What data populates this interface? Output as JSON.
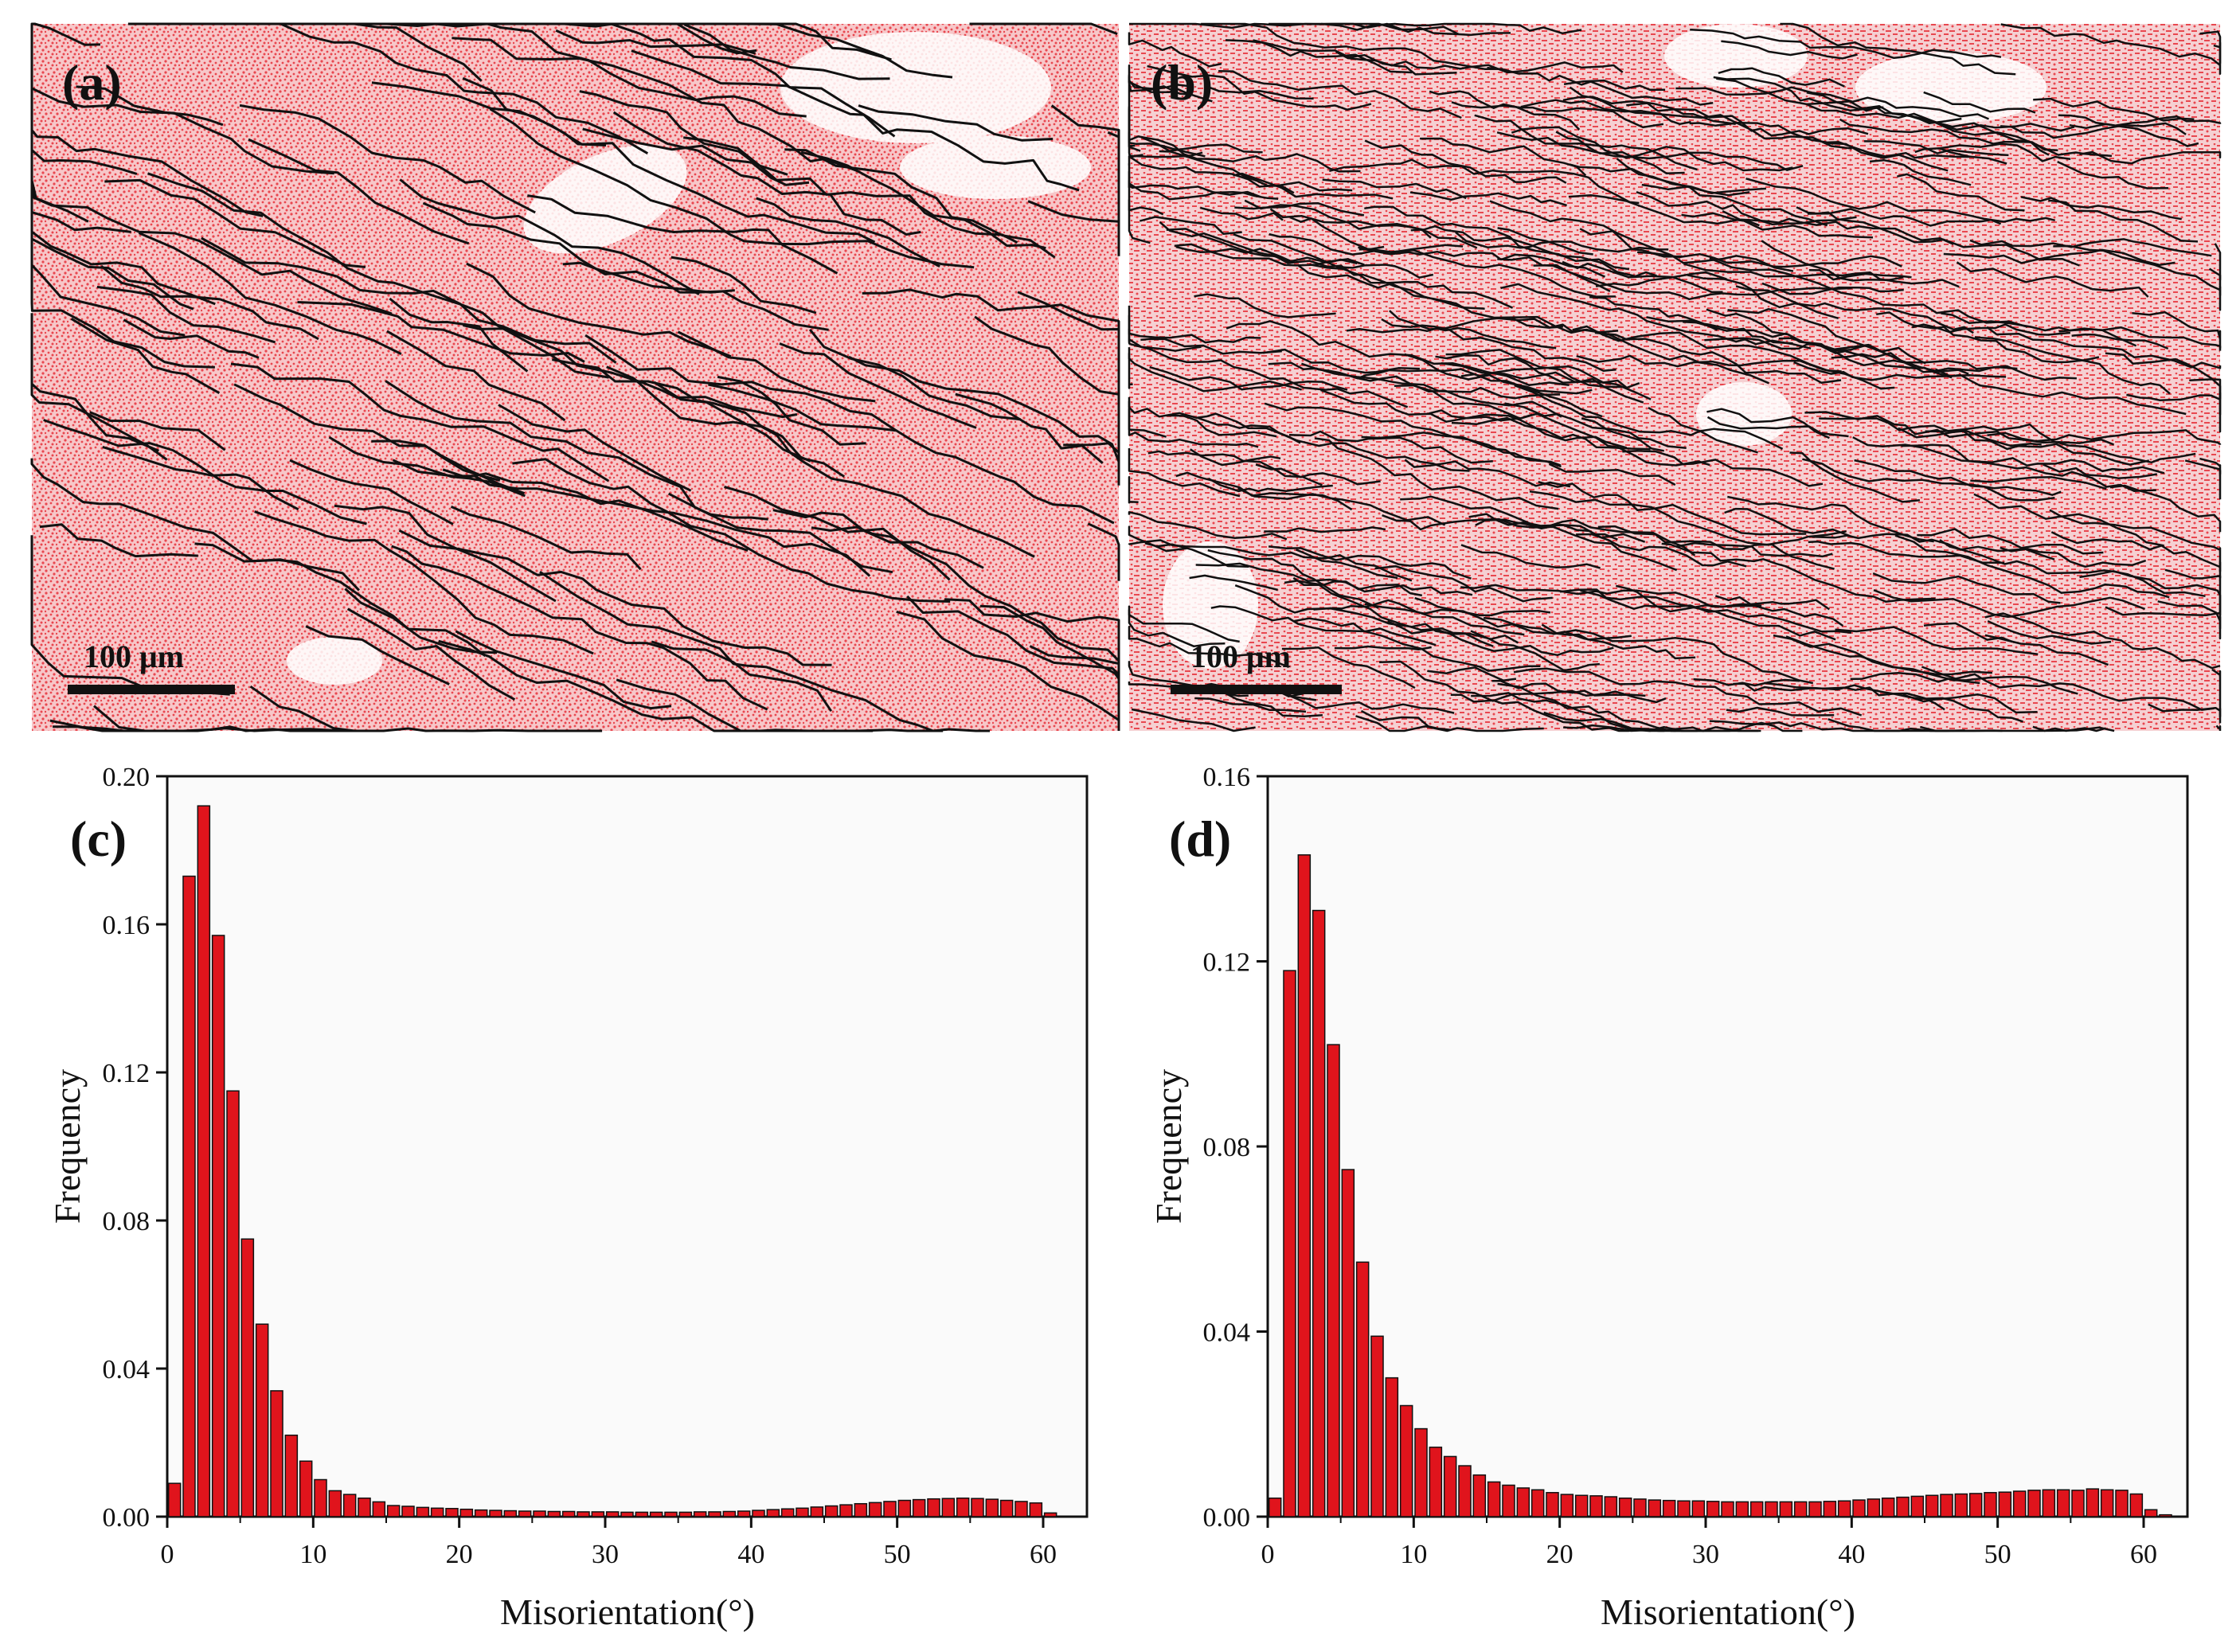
{
  "maps": [
    {
      "label": "(a)",
      "scalebar": "100 μm",
      "colors": {
        "grain": "#e8474f",
        "boundary": "#111111",
        "background": "#ffffff"
      }
    },
    {
      "label": "(b)",
      "scalebar": "100 μm",
      "colors": {
        "grain": "#e8474f",
        "boundary": "#111111",
        "background": "#ffffff"
      }
    }
  ],
  "chart_data": [
    {
      "type": "bar",
      "panel": "(c)",
      "xlabel": "Misorientation(°)",
      "ylabel": "Frequency",
      "xlim": [
        0,
        63
      ],
      "ylim": [
        0,
        0.2
      ],
      "xticks": [
        0,
        10,
        20,
        30,
        40,
        50,
        60
      ],
      "yticks": [
        0.0,
        0.04,
        0.08,
        0.12,
        0.16,
        0.2
      ],
      "ytick_labels": [
        "0.00",
        "0.04",
        "0.08",
        "0.12",
        "0.16",
        "0.20"
      ],
      "bar_color": "#e0141c",
      "x": [
        0.5,
        1.5,
        2.5,
        3.5,
        4.5,
        5.5,
        6.5,
        7.5,
        8.5,
        9.5,
        10.5,
        11.5,
        12.5,
        13.5,
        14.5,
        15.5,
        16.5,
        17.5,
        18.5,
        19.5,
        20.5,
        21.5,
        22.5,
        23.5,
        24.5,
        25.5,
        26.5,
        27.5,
        28.5,
        29.5,
        30.5,
        31.5,
        32.5,
        33.5,
        34.5,
        35.5,
        36.5,
        37.5,
        38.5,
        39.5,
        40.5,
        41.5,
        42.5,
        43.5,
        44.5,
        45.5,
        46.5,
        47.5,
        48.5,
        49.5,
        50.5,
        51.5,
        52.5,
        53.5,
        54.5,
        55.5,
        56.5,
        57.5,
        58.5,
        59.5,
        60.5
      ],
      "values": [
        0.009,
        0.173,
        0.192,
        0.157,
        0.115,
        0.075,
        0.052,
        0.034,
        0.022,
        0.015,
        0.01,
        0.007,
        0.006,
        0.005,
        0.004,
        0.003,
        0.0028,
        0.0025,
        0.0023,
        0.0022,
        0.002,
        0.0018,
        0.0017,
        0.0016,
        0.0015,
        0.0015,
        0.0014,
        0.0014,
        0.0013,
        0.0013,
        0.0013,
        0.0012,
        0.0012,
        0.0012,
        0.0012,
        0.0012,
        0.0013,
        0.0013,
        0.0014,
        0.0015,
        0.0017,
        0.0019,
        0.0021,
        0.0023,
        0.0026,
        0.0029,
        0.0032,
        0.0035,
        0.0038,
        0.0041,
        0.0044,
        0.0046,
        0.0048,
        0.0049,
        0.005,
        0.0049,
        0.0047,
        0.0044,
        0.0041,
        0.0037,
        0.001
      ]
    },
    {
      "type": "bar",
      "panel": "(d)",
      "xlabel": "Misorientation(°)",
      "ylabel": "Frequency",
      "xlim": [
        0,
        63
      ],
      "ylim": [
        0,
        0.16
      ],
      "xticks": [
        0,
        10,
        20,
        30,
        40,
        50,
        60
      ],
      "yticks": [
        0.0,
        0.04,
        0.08,
        0.12,
        0.16
      ],
      "ytick_labels": [
        "0.00",
        "0.04",
        "0.08",
        "0.12",
        "0.16"
      ],
      "bar_color": "#e0141c",
      "x": [
        0.5,
        1.5,
        2.5,
        3.5,
        4.5,
        5.5,
        6.5,
        7.5,
        8.5,
        9.5,
        10.5,
        11.5,
        12.5,
        13.5,
        14.5,
        15.5,
        16.5,
        17.5,
        18.5,
        19.5,
        20.5,
        21.5,
        22.5,
        23.5,
        24.5,
        25.5,
        26.5,
        27.5,
        28.5,
        29.5,
        30.5,
        31.5,
        32.5,
        33.5,
        34.5,
        35.5,
        36.5,
        37.5,
        38.5,
        39.5,
        40.5,
        41.5,
        42.5,
        43.5,
        44.5,
        45.5,
        46.5,
        47.5,
        48.5,
        49.5,
        50.5,
        51.5,
        52.5,
        53.5,
        54.5,
        55.5,
        56.5,
        57.5,
        58.5,
        59.5,
        60.5,
        61.5
      ],
      "values": [
        0.004,
        0.118,
        0.143,
        0.131,
        0.102,
        0.075,
        0.055,
        0.039,
        0.03,
        0.024,
        0.019,
        0.015,
        0.013,
        0.011,
        0.009,
        0.0075,
        0.0068,
        0.0062,
        0.0058,
        0.0052,
        0.0048,
        0.0046,
        0.0045,
        0.0043,
        0.004,
        0.0038,
        0.0036,
        0.0035,
        0.0034,
        0.0034,
        0.0033,
        0.0032,
        0.0032,
        0.0032,
        0.0032,
        0.0032,
        0.0032,
        0.0032,
        0.0033,
        0.0034,
        0.0036,
        0.0038,
        0.004,
        0.0042,
        0.0044,
        0.0046,
        0.0048,
        0.0049,
        0.005,
        0.0052,
        0.0053,
        0.0055,
        0.0057,
        0.0058,
        0.0058,
        0.0057,
        0.006,
        0.0058,
        0.0057,
        0.0049,
        0.0015,
        0.0004
      ]
    }
  ]
}
